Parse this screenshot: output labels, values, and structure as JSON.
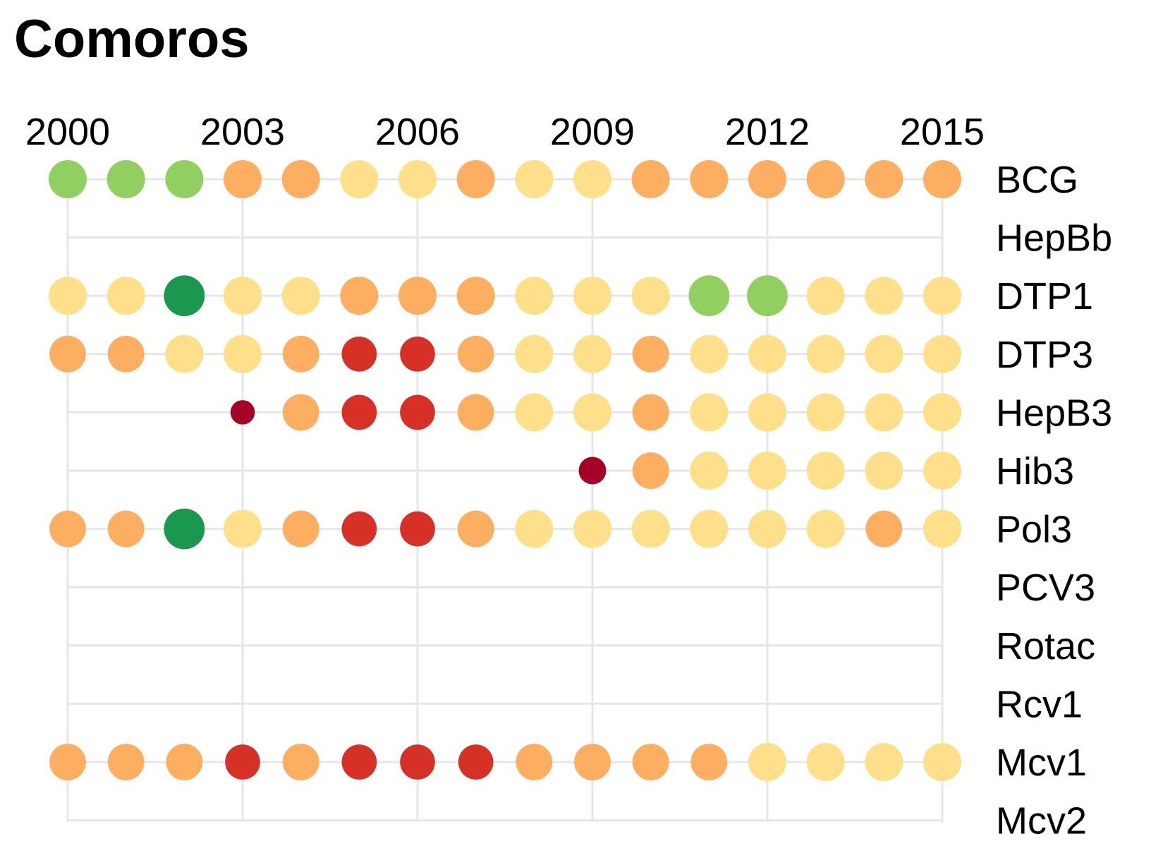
{
  "chart_data": {
    "type": "scatter",
    "title": "Comoros",
    "x_ticks": [
      "2000",
      "2003",
      "2006",
      "2009",
      "2012",
      "2015"
    ],
    "years": [
      2000,
      2001,
      2002,
      2003,
      2004,
      2005,
      2006,
      2007,
      2008,
      2009,
      2010,
      2011,
      2012,
      2013,
      2014,
      2015
    ],
    "xlim": [
      2000,
      2015
    ],
    "grid": true,
    "colors": {
      "dark-red": "#a50026",
      "red": "#d73027",
      "orange": "#fdae61",
      "light-yellow": "#fee08b",
      "light-green": "#91cf60",
      "dark-green": "#1a9850",
      "grid": "#e6e6e6"
    },
    "series": [
      {
        "name": "BCG",
        "values": [
          "orange-light-green",
          "light-green",
          "light-green",
          "orange",
          "orange",
          "light-yellow",
          "light-yellow",
          "orange",
          "light-yellow",
          "light-yellow",
          "orange",
          "orange",
          "orange",
          "orange",
          "orange",
          "orange"
        ],
        "sizes": [
          1,
          1,
          1,
          1,
          1,
          1,
          1,
          1,
          1,
          1,
          1,
          1,
          1,
          1,
          1,
          1
        ]
      },
      {
        "name": "HepBb",
        "values": [],
        "sizes": []
      },
      {
        "name": "DTP1",
        "values": [
          "light-yellow",
          "light-yellow",
          "dark-green",
          "light-yellow",
          "light-yellow",
          "orange",
          "orange",
          "orange",
          "light-yellow",
          "light-yellow",
          "light-yellow",
          "light-green",
          "light-green",
          "light-yellow",
          "light-yellow",
          "light-yellow"
        ],
        "sizes": [
          1,
          1,
          1.07,
          1,
          1,
          1,
          1,
          1,
          1,
          1,
          1,
          1.07,
          1.07,
          1,
          1,
          1
        ]
      },
      {
        "name": "DTP3",
        "values": [
          "orange",
          "orange",
          "light-yellow",
          "light-yellow",
          "orange",
          "red",
          "red",
          "orange",
          "light-yellow",
          "light-yellow",
          "orange",
          "light-yellow",
          "light-yellow",
          "light-yellow",
          "light-yellow",
          "light-yellow"
        ],
        "sizes": [
          0.96,
          0.96,
          1,
          1,
          0.96,
          0.92,
          0.92,
          0.96,
          1,
          1,
          0.96,
          1,
          1,
          1,
          1,
          1
        ]
      },
      {
        "name": "HepB3",
        "values": [
          null,
          null,
          null,
          "dark-red",
          "orange",
          "red",
          "red",
          "orange",
          "light-yellow",
          "light-yellow",
          "orange",
          "light-yellow",
          "light-yellow",
          "light-yellow",
          "light-yellow",
          "light-yellow"
        ],
        "sizes": [
          0,
          0,
          0,
          0.64,
          0.96,
          0.92,
          0.92,
          0.96,
          1,
          1,
          0.96,
          1,
          1,
          1,
          1,
          1
        ]
      },
      {
        "name": "Hib3",
        "values": [
          null,
          null,
          null,
          null,
          null,
          null,
          null,
          null,
          null,
          "dark-red",
          "orange",
          "light-yellow",
          "light-yellow",
          "light-yellow",
          "light-yellow",
          "light-yellow"
        ],
        "sizes": [
          0,
          0,
          0,
          0,
          0,
          0,
          0,
          0,
          0,
          0.72,
          0.96,
          1,
          1,
          1,
          1,
          1
        ]
      },
      {
        "name": "Pol3",
        "values": [
          "orange",
          "orange",
          "dark-green",
          "light-yellow",
          "orange",
          "red",
          "red",
          "orange",
          "light-yellow",
          "light-yellow",
          "light-yellow",
          "light-yellow",
          "light-yellow",
          "light-yellow",
          "orange",
          "light-yellow"
        ],
        "sizes": [
          0.96,
          0.96,
          1.07,
          1,
          0.96,
          0.92,
          0.92,
          0.96,
          1,
          1,
          1,
          1,
          1,
          1,
          0.96,
          1
        ]
      },
      {
        "name": "PCV3",
        "values": [],
        "sizes": []
      },
      {
        "name": "Rotac",
        "values": [],
        "sizes": []
      },
      {
        "name": "Rcv1",
        "values": [],
        "sizes": []
      },
      {
        "name": "Mcv1",
        "values": [
          "orange",
          "orange",
          "orange",
          "red",
          "orange",
          "red",
          "red",
          "red",
          "orange",
          "orange",
          "orange",
          "orange",
          "light-yellow",
          "light-yellow",
          "light-yellow",
          "light-yellow"
        ],
        "sizes": [
          0.96,
          0.96,
          0.96,
          0.92,
          0.96,
          0.92,
          0.92,
          0.92,
          0.96,
          0.96,
          0.96,
          0.96,
          1,
          1,
          1,
          1
        ]
      },
      {
        "name": "Mcv2",
        "values": [],
        "sizes": []
      }
    ]
  }
}
